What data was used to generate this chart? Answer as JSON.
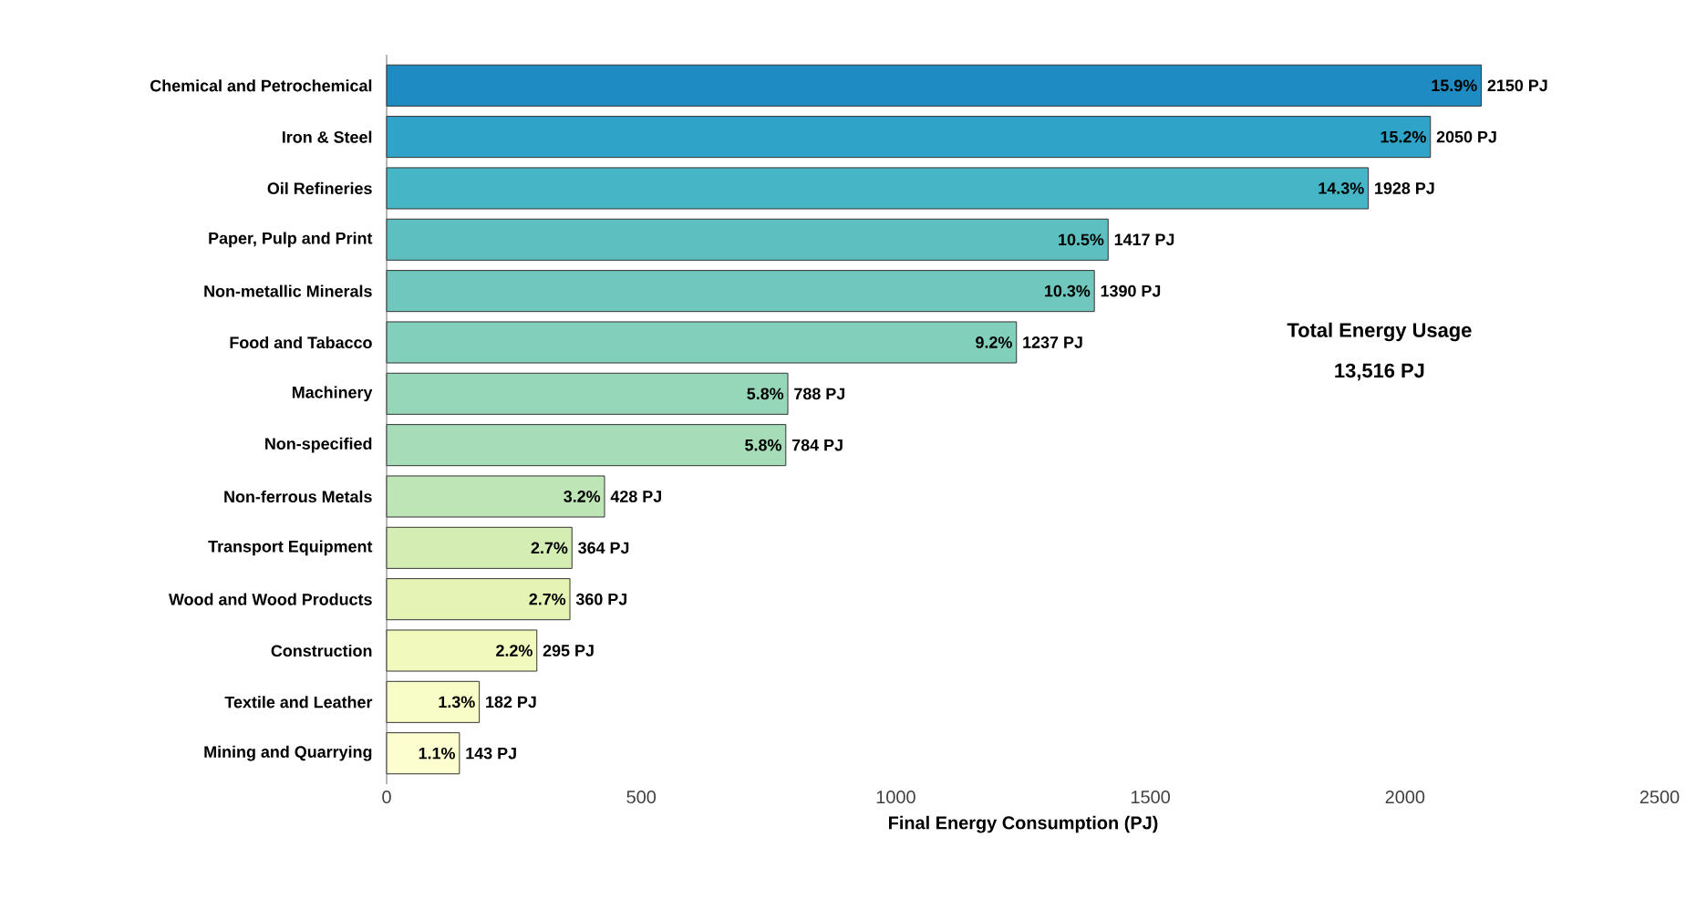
{
  "chart_data": {
    "type": "bar",
    "orientation": "horizontal",
    "xlabel": "Final Energy Consumption (PJ)",
    "categories": [
      "Chemical and Petrochemical",
      "Iron & Steel",
      "Oil Refineries",
      "Paper, Pulp and Print",
      "Non-metallic Minerals",
      "Food and Tabacco",
      "Machinery",
      "Non-specified",
      "Non-ferrous Metals",
      "Transport Equipment",
      "Wood and Wood Products",
      "Construction",
      "Textile and Leather",
      "Mining and Quarrying"
    ],
    "values": [
      2150,
      2050,
      1928,
      1417,
      1390,
      1237,
      788,
      784,
      428,
      364,
      360,
      295,
      182,
      143
    ],
    "colors": [
      "#1e8cc3",
      "#2fa3c8",
      "#46b5c6",
      "#5dbfc0",
      "#6fc7bd",
      "#82cfbb",
      "#96d7ba",
      "#a6dcb8",
      "#bde5b5",
      "#d3edb3",
      "#e5f4b4",
      "#f1f9bc",
      "#f8fcc6",
      "#fdfed0"
    ],
    "value_labels": [
      "2150 PJ",
      "2050 PJ",
      "1928 PJ",
      "1417 PJ",
      "1390 PJ",
      "1237 PJ",
      "788 PJ",
      "784 PJ",
      "428 PJ",
      "364 PJ",
      "360 PJ",
      "295 PJ",
      "182 PJ",
      "143 PJ"
    ],
    "xlim": [
      0,
      2500
    ],
    "xticks": [
      0,
      500,
      1000,
      1500,
      2000,
      2500
    ],
    "annotations": [
      {
        "text": "15.9%",
        "x": 2150,
        "y": "Chemical and Petrochemical"
      },
      {
        "text": "15.2%",
        "x": 2050,
        "y": "Iron & Steel"
      },
      {
        "text": "14.3%",
        "x": 1928,
        "y": "Oil Refineries"
      },
      {
        "text": "10.5%",
        "x": 1417,
        "y": "Paper, Pulp and Print"
      },
      {
        "text": "10.3%",
        "x": 1390,
        "y": "Non-metallic Minerals"
      },
      {
        "text": "9.2%",
        "x": 1237,
        "y": "Food and Tabacco"
      },
      {
        "text": "5.8%",
        "x": 788,
        "y": "Machinery"
      },
      {
        "text": "5.8%",
        "x": 784,
        "y": "Non-specified"
      },
      {
        "text": "3.2%",
        "x": 428,
        "y": "Non-ferrous Metals"
      },
      {
        "text": "2.7%",
        "x": 364,
        "y": "Transport Equipment"
      },
      {
        "text": "2.7%",
        "x": 360,
        "y": "Wood and Wood Products"
      },
      {
        "text": "2.2%",
        "x": 295,
        "y": "Construction"
      },
      {
        "text": "1.3%",
        "x": 182,
        "y": "Textile and Leather"
      },
      {
        "text": "1.1%",
        "x": 143,
        "y": "Mining and Quarrying"
      },
      "Total Energy Usage",
      "13,516 PJ"
    ],
    "grid": false
  }
}
